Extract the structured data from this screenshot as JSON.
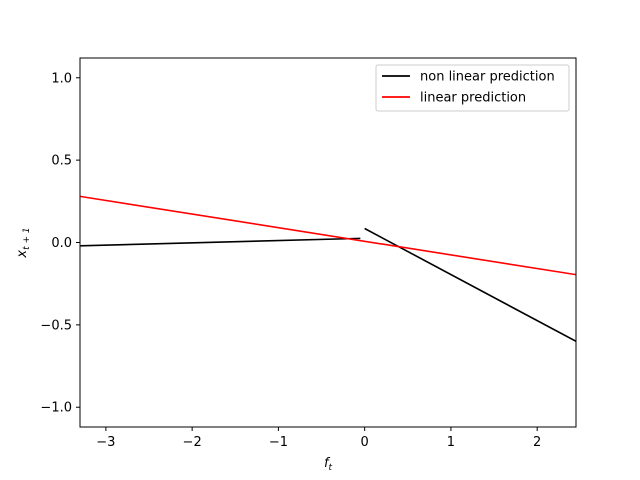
{
  "chart_data": {
    "type": "line",
    "title": "",
    "xlabel": "f",
    "xlabel_sub": "t",
    "ylabel": "x",
    "ylabel_sub": "t + 1",
    "xlim": [
      -3.3,
      2.45
    ],
    "ylim": [
      -1.12,
      1.12
    ],
    "xticks": [
      -3,
      -2,
      -1,
      0,
      1,
      2
    ],
    "xtick_labels": [
      "−3",
      "−2",
      "−1",
      "0",
      "1",
      "2"
    ],
    "yticks": [
      -1.0,
      -0.5,
      0.0,
      0.5,
      1.0
    ],
    "ytick_labels": [
      "−1.0",
      "−0.5",
      "0.0",
      "0.5",
      "1.0"
    ],
    "grid": false,
    "legend_position": "top-right",
    "series": [
      {
        "name": "non linear prediction",
        "color": "#000000",
        "segments": [
          [
            [
              -3.3,
              -0.02
            ],
            [
              -0.05,
              0.025
            ]
          ],
          [
            [
              0.0,
              0.085
            ],
            [
              2.45,
              -0.6
            ]
          ]
        ]
      },
      {
        "name": "linear prediction",
        "color": "#ff0000",
        "segments": [
          [
            [
              -3.3,
              0.28
            ],
            [
              2.45,
              -0.195
            ]
          ]
        ]
      }
    ]
  }
}
